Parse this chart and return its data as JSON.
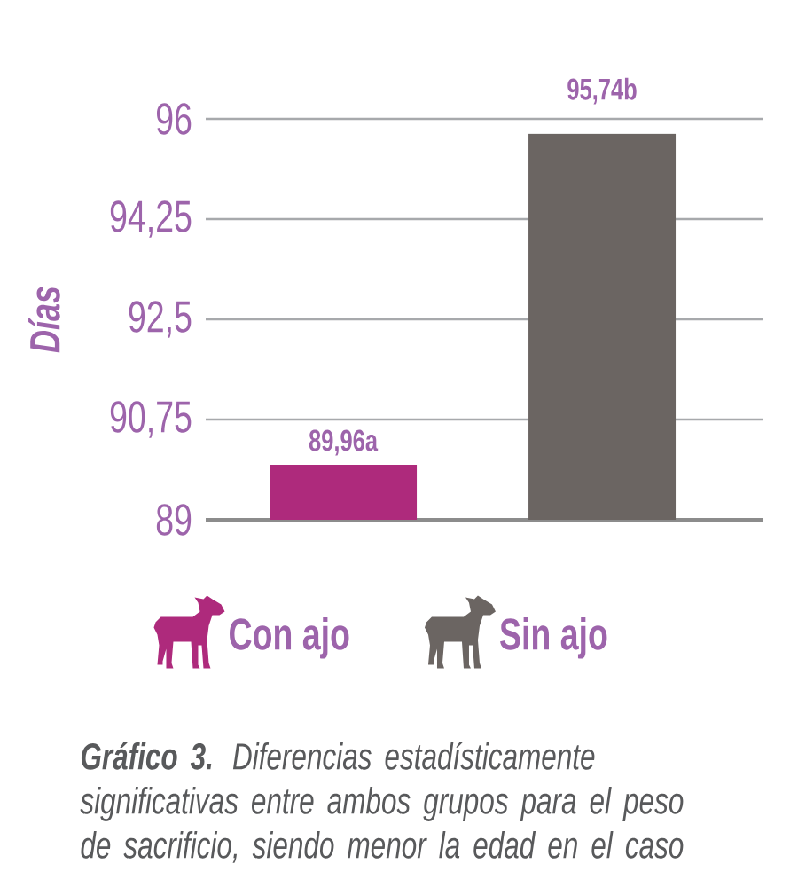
{
  "chart_data": {
    "type": "bar",
    "categories": [
      null
    ],
    "series": [
      {
        "name": "Con ajo",
        "color": "#ae2a7c",
        "values": [
          89.96
        ],
        "value_labels": [
          "89,96a"
        ]
      },
      {
        "name": "Sin ajo",
        "color": "#6b6562",
        "values": [
          95.74
        ],
        "value_labels": [
          "95,74b"
        ]
      }
    ],
    "ylabel": "Días",
    "ylim": [
      89,
      96
    ],
    "yticks": [
      89,
      {
        "value": 90.75,
        "label": "90,75"
      },
      {
        "value": 92.5,
        "label": "92,5"
      },
      {
        "value": 94.25,
        "label": "94,25"
      },
      96
    ],
    "grid": "y",
    "legend": "bottom",
    "tick_labels": "y",
    "annotations": [
      "**Gráfico 3.** Diferencias estadísticamente significativas entre ambos grupos para el peso de sacrificio, siendo menor la edad en el caso"
    ]
  }
}
